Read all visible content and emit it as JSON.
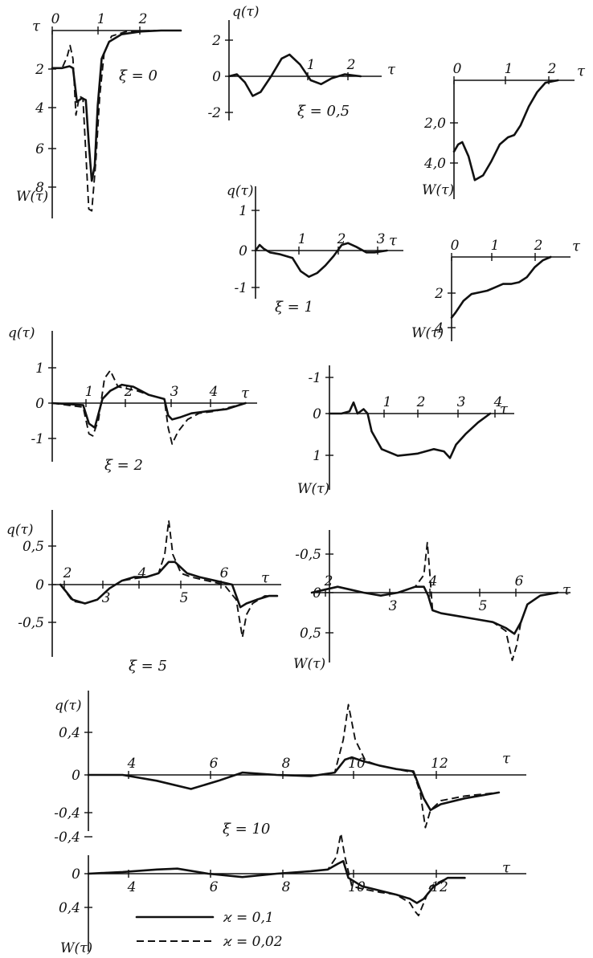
{
  "legend": {
    "solid": "ϰ = 0,1",
    "dashed": "ϰ = 0,02"
  },
  "chart_data": [
    {
      "id": "xi0-W",
      "type": "line",
      "xlabel": "τ",
      "ylabel": "W(τ)",
      "annotation": "ξ = 0",
      "x_ticks": [
        "0",
        "1",
        "2"
      ],
      "y_ticks": [
        "2",
        "4",
        "6",
        "8"
      ],
      "xlim": [
        0,
        2.6
      ],
      "ylim": [
        0,
        10
      ],
      "y_inverted": true,
      "series": [
        {
          "style": "solid",
          "x": [
            0,
            0.2,
            0.35,
            0.42,
            0.5,
            0.6,
            0.68,
            0.74,
            0.8,
            0.86,
            0.92,
            1.0,
            1.15,
            1.4,
            1.8,
            2.2,
            2.6
          ],
          "y": [
            2.0,
            2.0,
            1.9,
            2.0,
            3.8,
            3.6,
            3.7,
            6.0,
            8.0,
            7.2,
            4.0,
            1.5,
            0.6,
            0.2,
            0.05,
            0.0,
            0.0
          ]
        },
        {
          "style": "dashed",
          "x": [
            0,
            0.2,
            0.3,
            0.36,
            0.42,
            0.48,
            0.55,
            0.62,
            0.68,
            0.74,
            0.8,
            0.88,
            0.96,
            1.05,
            1.2,
            1.5,
            2.0,
            2.6
          ],
          "y": [
            2.0,
            2.0,
            1.4,
            0.8,
            1.5,
            4.5,
            3.5,
            3.6,
            6.5,
            9.5,
            9.6,
            7.0,
            3.5,
            1.2,
            0.3,
            0.05,
            0.0,
            0.0
          ]
        }
      ]
    },
    {
      "id": "xi05-q",
      "type": "line",
      "xlabel": "τ",
      "ylabel": "q(τ)",
      "annotation": "ξ = 0,5",
      "x_ticks": [
        "1",
        "2"
      ],
      "y_ticks": [
        "2",
        "0",
        "-2"
      ],
      "xlim": [
        0,
        2.9
      ],
      "ylim": [
        -2.4,
        2.7
      ],
      "series": [
        {
          "style": "solid",
          "x": [
            0,
            0.15,
            0.3,
            0.45,
            0.6,
            0.8,
            1.0,
            1.15,
            1.35,
            1.55,
            1.75,
            1.95,
            2.2,
            2.5
          ],
          "y": [
            0,
            0.1,
            -0.3,
            -1.0,
            -0.8,
            0.0,
            0.9,
            1.1,
            0.6,
            -0.2,
            -0.4,
            -0.1,
            0.1,
            0.0
          ]
        }
      ]
    },
    {
      "id": "xi05-W",
      "type": "line",
      "xlabel": "τ",
      "ylabel": "W(τ)",
      "annotation": "",
      "x_ticks": [
        "0",
        "1",
        "2"
      ],
      "y_ticks": [
        "2,0",
        "4,0"
      ],
      "xlim": [
        0,
        2.9
      ],
      "ylim": [
        0,
        5.0
      ],
      "y_inverted": true,
      "series": [
        {
          "style": "solid",
          "x": [
            0,
            0.1,
            0.2,
            0.35,
            0.5,
            0.7,
            0.9,
            1.1,
            1.3,
            1.45,
            1.6,
            1.8,
            2.0,
            2.2,
            2.5
          ],
          "y": [
            3.0,
            2.7,
            2.6,
            3.2,
            4.2,
            4.0,
            3.4,
            2.7,
            2.4,
            2.3,
            1.9,
            1.1,
            0.5,
            0.1,
            0.0
          ]
        }
      ]
    },
    {
      "id": "xi1-q",
      "type": "line",
      "xlabel": "τ",
      "ylabel": "q(τ)",
      "annotation": "ξ = 1",
      "x_ticks": [
        "1",
        "2",
        "3"
      ],
      "y_ticks": [
        "1",
        "0",
        "-1"
      ],
      "xlim": [
        0,
        3.6
      ],
      "ylim": [
        -1.4,
        1.6
      ],
      "series": [
        {
          "style": "solid",
          "x": [
            0,
            0.1,
            0.2,
            0.35,
            0.6,
            0.9,
            1.1,
            1.3,
            1.5,
            1.7,
            1.9,
            2.1,
            2.25,
            2.45,
            2.7,
            2.9,
            3.2
          ],
          "y": [
            0,
            0.15,
            0.05,
            -0.05,
            -0.1,
            -0.2,
            -0.55,
            -0.7,
            -0.6,
            -0.4,
            -0.15,
            0.15,
            0.2,
            0.1,
            -0.05,
            -0.05,
            0.0
          ]
        }
      ]
    },
    {
      "id": "xi1-W",
      "type": "line",
      "xlabel": "τ",
      "ylabel": "W(τ)",
      "annotation": "",
      "x_ticks": [
        "0",
        "1",
        "2"
      ],
      "y_ticks": [
        "2",
        "4"
      ],
      "xlim": [
        0,
        3.0
      ],
      "ylim": [
        0,
        5.0
      ],
      "y_inverted": true,
      "series": [
        {
          "style": "solid",
          "x": [
            0,
            0.1,
            0.3,
            0.5,
            0.7,
            0.9,
            1.1,
            1.3,
            1.5,
            1.7,
            1.9,
            2.1,
            2.3,
            2.5
          ],
          "y": [
            3.6,
            3.3,
            2.6,
            2.2,
            2.1,
            2.0,
            1.8,
            1.6,
            1.6,
            1.5,
            1.2,
            0.6,
            0.2,
            0.0
          ]
        }
      ]
    },
    {
      "id": "xi2-q",
      "type": "line",
      "xlabel": "τ",
      "ylabel": "q(τ)",
      "annotation": "ξ = 2",
      "x_ticks": [
        "1",
        "2",
        "3",
        "4"
      ],
      "y_ticks": [
        "1",
        "0",
        "-1"
      ],
      "xlim": [
        0,
        5.3
      ],
      "ylim": [
        -1.6,
        1.6
      ],
      "series": [
        {
          "style": "solid",
          "x": [
            0,
            0.8,
            0.95,
            1.1,
            1.3,
            1.5,
            1.8,
            2.1,
            2.5,
            2.9,
            3.0,
            3.1,
            3.3,
            3.6,
            4.0,
            4.5,
            5.0
          ],
          "y": [
            0,
            -0.05,
            -0.5,
            -0.6,
            0.1,
            0.3,
            0.45,
            0.4,
            0.2,
            0.1,
            -0.3,
            -0.4,
            -0.35,
            -0.25,
            -0.2,
            -0.15,
            0.0
          ]
        },
        {
          "style": "dashed",
          "x": [
            0,
            0.8,
            0.95,
            1.05,
            1.2,
            1.35,
            1.5,
            1.7,
            1.95,
            2.2,
            2.5,
            2.9,
            3.0,
            3.1,
            3.25,
            3.5,
            3.8,
            4.2,
            5.0
          ],
          "y": [
            0,
            -0.1,
            -0.75,
            -0.8,
            -0.4,
            0.6,
            0.8,
            0.4,
            0.35,
            0.3,
            0.2,
            0.1,
            -0.6,
            -1.0,
            -0.7,
            -0.4,
            -0.25,
            -0.2,
            0.0
          ]
        }
      ]
    },
    {
      "id": "xi2-W",
      "type": "line",
      "xlabel": "τ",
      "ylabel": "W(τ)",
      "annotation": "",
      "x_ticks": [
        "1",
        "2",
        "3",
        "4"
      ],
      "y_ticks": [
        "-1",
        "0",
        "1"
      ],
      "xlim": [
        0,
        4.6
      ],
      "ylim": [
        -1.3,
        1.5
      ],
      "y_inverted": true,
      "series": [
        {
          "style": "solid",
          "x": [
            0,
            0.3,
            0.5,
            0.6,
            0.7,
            0.85,
            0.95,
            1.05,
            1.3,
            1.7,
            2.2,
            2.6,
            2.85,
            3.0,
            3.15,
            3.4,
            3.7,
            4.0
          ],
          "y": [
            0,
            0,
            -0.05,
            -0.25,
            0,
            -0.1,
            0,
            0.4,
            0.8,
            0.95,
            0.9,
            0.8,
            0.85,
            1.0,
            0.7,
            0.45,
            0.2,
            0.0
          ]
        }
      ]
    },
    {
      "id": "xi5-q",
      "type": "line",
      "xlabel": "τ",
      "ylabel": "q(τ)",
      "annotation": "ξ = 5",
      "x_ticks": [
        "2",
        "3",
        "4",
        "5",
        "6"
      ],
      "y_ticks": [
        "0,5",
        "0",
        "-0,5"
      ],
      "xlim": [
        1.6,
        7.2
      ],
      "ylim": [
        -0.95,
        1.0
      ],
      "series": [
        {
          "style": "solid",
          "x": [
            1.8,
            2.1,
            2.4,
            2.7,
            3.0,
            3.3,
            3.6,
            3.9,
            4.2,
            4.45,
            4.6,
            4.9,
            5.2,
            5.6,
            6.0,
            6.2,
            6.35,
            6.6,
            6.9,
            7.1
          ],
          "y": [
            0,
            -0.2,
            -0.25,
            -0.2,
            -0.05,
            0.05,
            0.1,
            0.1,
            0.15,
            0.3,
            0.3,
            0.15,
            0.1,
            0.05,
            0.0,
            -0.3,
            -0.25,
            -0.2,
            -0.15,
            -0.15
          ]
        },
        {
          "style": "dashed",
          "x": [
            1.8,
            2.1,
            2.4,
            2.7,
            3.0,
            3.3,
            3.6,
            3.9,
            4.2,
            4.35,
            4.45,
            4.55,
            4.75,
            5.0,
            5.4,
            5.8,
            6.1,
            6.25,
            6.35,
            6.5,
            6.8,
            7.1
          ],
          "y": [
            0,
            -0.22,
            -0.25,
            -0.2,
            -0.05,
            0.05,
            0.08,
            0.1,
            0.15,
            0.4,
            0.85,
            0.4,
            0.15,
            0.1,
            0.05,
            0.0,
            -0.2,
            -0.7,
            -0.4,
            -0.25,
            -0.15,
            -0.15
          ]
        }
      ]
    },
    {
      "id": "xi5-W",
      "type": "line",
      "xlabel": "τ",
      "ylabel": "W(τ)",
      "annotation": "",
      "x_ticks": [
        "2",
        "3",
        "4",
        "5",
        "6"
      ],
      "y_ticks": [
        "-0,5",
        "0",
        "0,5"
      ],
      "xlim": [
        1.6,
        7.6
      ],
      "ylim": [
        -0.95,
        1.3
      ],
      "y_inverted": true,
      "series": [
        {
          "style": "solid",
          "x": [
            1.6,
            1.9,
            2.2,
            2.5,
            2.8,
            3.2,
            3.6,
            4.0,
            4.2,
            4.3,
            4.4,
            4.6,
            5.0,
            5.4,
            5.8,
            6.1,
            6.3,
            6.45,
            6.6,
            6.9,
            7.3
          ],
          "y": [
            0,
            -0.05,
            -0.1,
            -0.05,
            0.0,
            0.05,
            0.0,
            -0.1,
            -0.1,
            0.05,
            0.3,
            0.35,
            0.4,
            0.45,
            0.5,
            0.6,
            0.7,
            0.5,
            0.2,
            0.05,
            0.0
          ]
        },
        {
          "style": "dashed",
          "x": [
            1.6,
            1.9,
            2.2,
            2.5,
            2.8,
            3.2,
            3.6,
            4.0,
            4.2,
            4.28,
            4.33,
            4.4,
            4.6,
            5.0,
            5.4,
            5.8,
            6.1,
            6.25,
            6.35,
            6.45,
            6.6,
            6.9,
            7.3
          ],
          "y": [
            0,
            -0.05,
            -0.1,
            -0.05,
            0.0,
            0.05,
            0.0,
            -0.1,
            -0.3,
            -0.85,
            -0.4,
            0.3,
            0.35,
            0.4,
            0.45,
            0.5,
            0.65,
            1.15,
            0.9,
            0.5,
            0.2,
            0.05,
            0.0
          ]
        }
      ]
    },
    {
      "id": "xi10-q",
      "type": "line",
      "xlabel": "τ",
      "ylabel": "q(τ)",
      "annotation": "ξ = 10",
      "x_ticks": [
        "4",
        "6",
        "8",
        "10",
        "12"
      ],
      "y_ticks": [
        "0,4",
        "0",
        "-0,4"
      ],
      "xlim": [
        2.0,
        14.8
      ],
      "ylim": [
        -0.5,
        0.7
      ],
      "series": [
        {
          "style": "solid",
          "x": [
            2.0,
            3.0,
            4.0,
            5.0,
            5.8,
            6.5,
            7.5,
            8.5,
            9.2,
            9.5,
            9.7,
            10.0,
            10.5,
            11.0,
            11.5,
            11.8,
            12.0,
            12.3,
            13.0,
            14.0
          ],
          "y": [
            0,
            0,
            -0.05,
            -0.12,
            -0.05,
            0.02,
            0.0,
            -0.01,
            0.02,
            0.13,
            0.15,
            0.12,
            0.08,
            0.05,
            0.03,
            -0.2,
            -0.3,
            -0.25,
            -0.2,
            -0.15
          ]
        },
        {
          "style": "dashed",
          "x": [
            2.0,
            3.0,
            4.0,
            5.0,
            5.8,
            6.5,
            7.5,
            8.5,
            9.2,
            9.45,
            9.6,
            9.8,
            10.1,
            10.5,
            11.0,
            11.5,
            11.7,
            11.85,
            12.0,
            12.3,
            13.0,
            14.0
          ],
          "y": [
            0,
            0,
            -0.05,
            -0.12,
            -0.05,
            0.02,
            0.0,
            -0.01,
            0.02,
            0.3,
            0.6,
            0.3,
            0.12,
            0.08,
            0.05,
            0.02,
            -0.15,
            -0.45,
            -0.3,
            -0.22,
            -0.18,
            -0.15
          ]
        }
      ]
    },
    {
      "id": "xi10-W",
      "type": "line",
      "xlabel": "τ",
      "ylabel": "W(τ)",
      "annotation": "",
      "x_ticks": [
        "4",
        "6",
        "8",
        "10",
        "12"
      ],
      "y_ticks": [
        "-0,4",
        "0",
        "0,4"
      ],
      "xlim": [
        2.0,
        14.8
      ],
      "ylim": [
        -0.55,
        0.6
      ],
      "y_inverted": true,
      "series": [
        {
          "style": "solid",
          "x": [
            2.0,
            3.0,
            4.0,
            4.6,
            5.5,
            6.5,
            7.5,
            8.5,
            9.0,
            9.3,
            9.45,
            9.6,
            10.0,
            10.5,
            11.0,
            11.4,
            11.6,
            11.8,
            12.1,
            12.5,
            13.0
          ],
          "y": [
            0,
            -0.02,
            -0.05,
            -0.06,
            0.0,
            0.04,
            0.0,
            -0.03,
            -0.05,
            -0.12,
            -0.15,
            0.05,
            0.15,
            0.2,
            0.25,
            0.3,
            0.35,
            0.3,
            0.15,
            0.05,
            0.05
          ]
        },
        {
          "style": "dashed",
          "x": [
            2.0,
            3.0,
            4.0,
            4.6,
            5.5,
            6.5,
            7.5,
            8.5,
            9.0,
            9.25,
            9.38,
            9.5,
            9.7,
            10.0,
            10.5,
            11.0,
            11.4,
            11.55,
            11.65,
            11.8,
            12.0,
            12.5,
            13.0
          ],
          "y": [
            0,
            -0.02,
            -0.05,
            -0.06,
            0.0,
            0.04,
            0.0,
            -0.03,
            -0.05,
            -0.2,
            -0.48,
            -0.2,
            0.15,
            0.18,
            0.22,
            0.25,
            0.35,
            0.45,
            0.5,
            0.35,
            0.15,
            0.05,
            0.05
          ]
        }
      ]
    }
  ]
}
